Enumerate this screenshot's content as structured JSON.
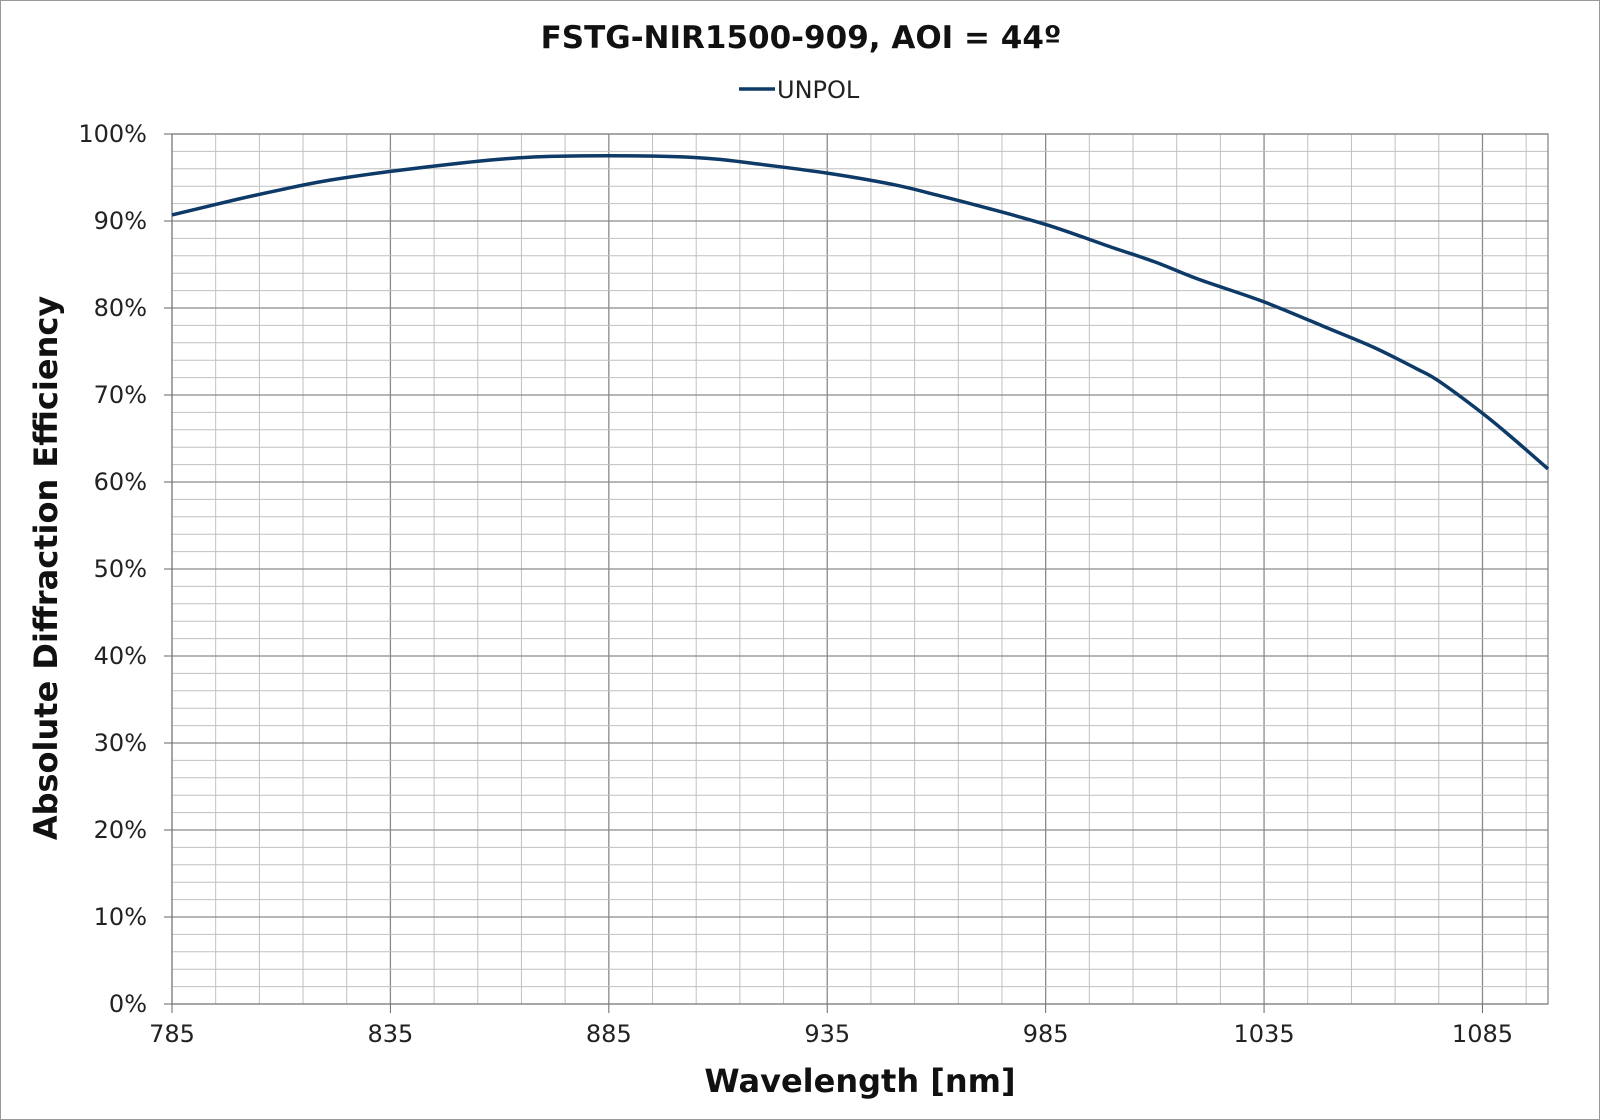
{
  "chart_data": {
    "type": "line",
    "title": "FSTG-NIR1500-909, AOI = 44º",
    "xlabel": "Wavelength [nm]",
    "ylabel": "Absolute Diffraction Efficiency",
    "xlim": [
      785,
      1100
    ],
    "ylim": [
      0,
      100
    ],
    "x_ticks": [
      785,
      835,
      885,
      935,
      985,
      1035,
      1085
    ],
    "x_tick_labels": [
      "785",
      "835",
      "885",
      "935",
      "985",
      "1035",
      "1085"
    ],
    "y_ticks": [
      0,
      10,
      20,
      30,
      40,
      50,
      60,
      70,
      80,
      90,
      100
    ],
    "y_tick_labels": [
      "0%",
      "10%",
      "20%",
      "30%",
      "40%",
      "50%",
      "60%",
      "70%",
      "80%",
      "90%",
      "100%"
    ],
    "x_minor_step": 10,
    "y_minor_step": 2,
    "grid": true,
    "legend_position": "top-center",
    "series": [
      {
        "name": "UNPOL",
        "color": "#0d3a66",
        "x": [
          785,
          800,
          810,
          820,
          835,
          850,
          860,
          870,
          885,
          900,
          910,
          920,
          935,
          950,
          960,
          970,
          985,
          1000,
          1010,
          1020,
          1035,
          1050,
          1060,
          1070,
          1075,
          1085,
          1092,
          1100
        ],
        "y": [
          90.7,
          92.5,
          93.6,
          94.6,
          95.7,
          96.6,
          97.1,
          97.4,
          97.5,
          97.4,
          97.1,
          96.5,
          95.5,
          94.2,
          93.0,
          91.7,
          89.6,
          87.0,
          85.3,
          83.3,
          80.7,
          77.6,
          75.5,
          73.0,
          71.6,
          67.9,
          65.0,
          61.5
        ]
      }
    ]
  }
}
